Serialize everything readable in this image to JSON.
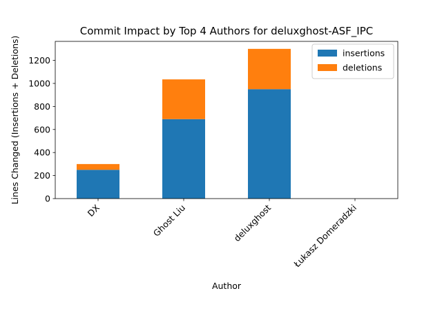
{
  "chart_data": {
    "type": "bar",
    "stacked": true,
    "title": "Commit Impact by Top 4 Authors for deluxghost-ASF_IPC",
    "xlabel": "Author",
    "ylabel": "Lines Changed (Insertions + Deletions)",
    "categories": [
      "DX",
      "Ghost Liu",
      "deluxghost",
      "Łukasz Domeradzki"
    ],
    "series": [
      {
        "name": "insertions",
        "color": "#1f77b4",
        "values": [
          250,
          690,
          950,
          0
        ]
      },
      {
        "name": "deletions",
        "color": "#ff7f0e",
        "values": [
          50,
          345,
          350,
          0
        ]
      }
    ],
    "ylim": [
      0,
      1365
    ],
    "yticks": [
      0,
      200,
      400,
      600,
      800,
      1000,
      1200
    ],
    "grid": false,
    "legend_position": "top-right"
  }
}
